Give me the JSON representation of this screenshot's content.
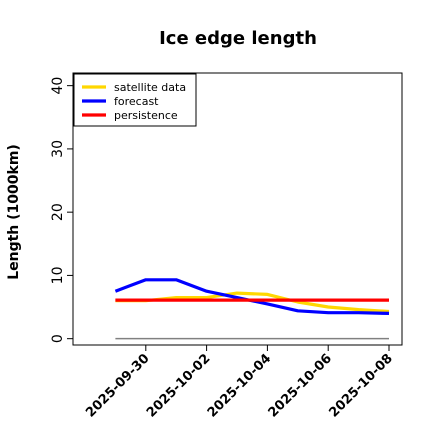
{
  "chart_data": {
    "type": "line",
    "title": "Ice edge length",
    "xlabel": "",
    "ylabel": "Length (1000km)",
    "ylim": [
      -1,
      42
    ],
    "yticks": [
      0,
      10,
      20,
      30,
      40
    ],
    "xlim": [
      "2025-09-28",
      "2025-10-08"
    ],
    "xtick_labels": [
      "2025-09-30",
      "2025-10-02",
      "2025-10-04",
      "2025-10-06",
      "2025-10-08"
    ],
    "highlight_tick_color": "#228b22",
    "grid": false,
    "legend_position": "upper-left",
    "baseline": {
      "value": 0,
      "color": "#808080"
    },
    "x": [
      "2025-09-29",
      "2025-09-30",
      "2025-10-01",
      "2025-10-02",
      "2025-10-03",
      "2025-10-04",
      "2025-10-05",
      "2025-10-06",
      "2025-10-07",
      "2025-10-08"
    ],
    "series": [
      {
        "name": "satellite data",
        "color": "#ffd700",
        "values": [
          6.0,
          6.0,
          6.5,
          6.5,
          7.2,
          7.0,
          5.8,
          5.0,
          4.6,
          4.3
        ]
      },
      {
        "name": "forecast",
        "color": "#0000ff",
        "values": [
          7.5,
          9.3,
          9.3,
          7.5,
          6.5,
          5.5,
          4.4,
          4.1,
          4.1,
          4.0
        ]
      },
      {
        "name": "persistence",
        "color": "#ff0000",
        "values": [
          6.1,
          6.1,
          6.1,
          6.1,
          6.1,
          6.1,
          6.1,
          6.1,
          6.1,
          6.1
        ]
      }
    ]
  }
}
